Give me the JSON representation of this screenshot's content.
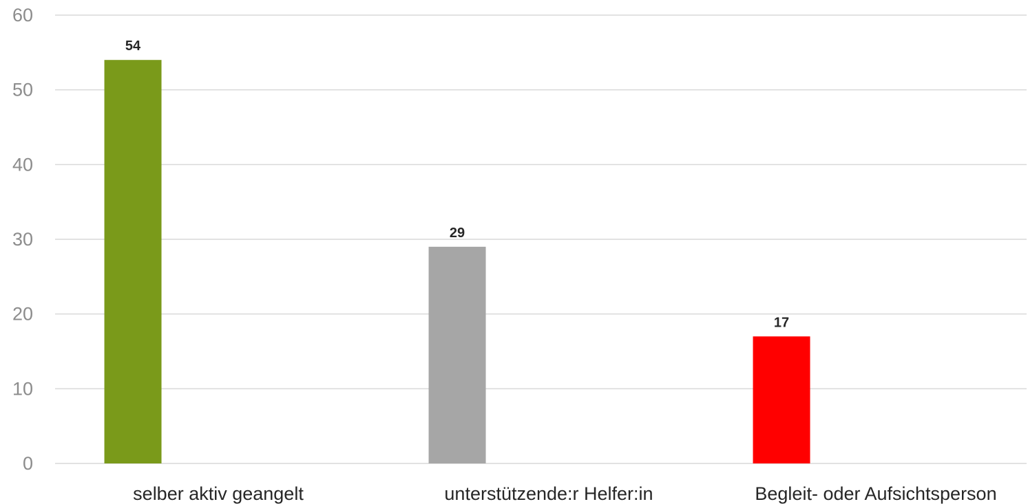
{
  "chart_data": {
    "type": "bar",
    "title": "",
    "xlabel": "",
    "ylabel": "",
    "categories": [
      "selber aktiv geangelt",
      "unterstützende:r Helfer:in",
      "Begleit- oder Aufsichtsperson"
    ],
    "values": [
      54,
      29,
      17
    ],
    "bar_colors": [
      "#7a9a1a",
      "#a6a6a6",
      "#ff0000"
    ],
    "data_labels": [
      "54",
      "29",
      "17"
    ],
    "ylim": [
      0,
      60
    ],
    "yticks": [
      0,
      10,
      20,
      30,
      40,
      50,
      60
    ],
    "ytick_labels": [
      "0",
      "10",
      "20",
      "30",
      "40",
      "50",
      "60"
    ],
    "grid": true,
    "legend": "none"
  }
}
